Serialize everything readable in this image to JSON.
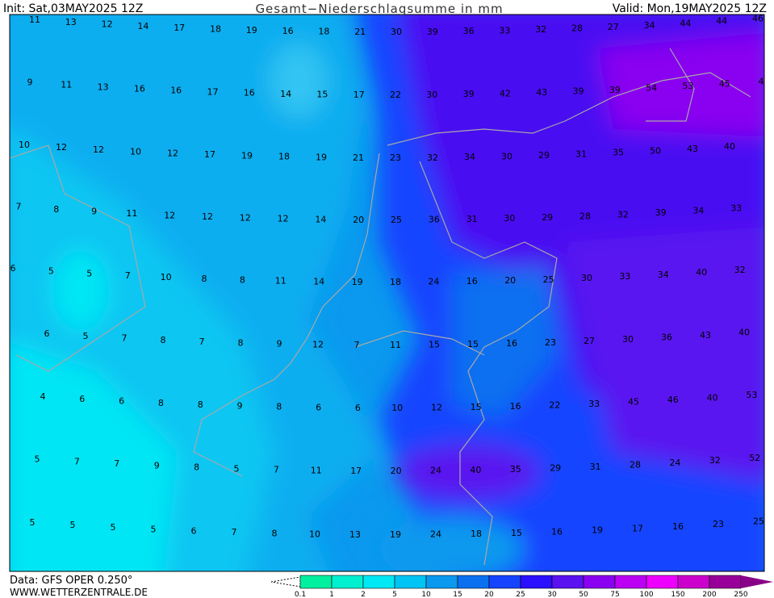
{
  "header": {
    "init": "Init: Sat,03MAY2025 12Z",
    "title": "Gesamt−Niederschlagsumme in mm",
    "valid": "Valid: Mon,19MAY2025 12Z"
  },
  "grid": {
    "rows": [
      [
        11,
        13,
        12,
        14,
        17,
        18,
        19,
        16,
        18,
        21,
        30,
        39,
        36,
        33,
        32,
        28,
        27,
        34,
        44,
        44,
        46
      ],
      [
        9,
        11,
        13,
        16,
        16,
        17,
        16,
        14,
        15,
        17,
        22,
        30,
        39,
        42,
        43,
        39,
        39,
        54,
        53,
        45,
        4
      ],
      [
        10,
        12,
        12,
        10,
        12,
        17,
        19,
        18,
        19,
        21,
        23,
        32,
        34,
        30,
        29,
        31,
        35,
        50,
        43,
        40
      ],
      [
        7,
        8,
        9,
        11,
        12,
        12,
        12,
        12,
        14,
        20,
        25,
        36,
        31,
        30,
        29,
        28,
        32,
        39,
        34,
        33
      ],
      [
        6,
        5,
        5,
        7,
        10,
        8,
        8,
        11,
        14,
        19,
        18,
        24,
        16,
        20,
        25,
        30,
        33,
        34,
        40,
        32
      ],
      [
        6,
        5,
        7,
        8,
        7,
        8,
        9,
        12,
        7,
        11,
        15,
        15,
        16,
        23,
        27,
        30,
        36,
        43,
        40
      ],
      [
        4,
        6,
        6,
        8,
        8,
        9,
        8,
        6,
        6,
        10,
        12,
        15,
        16,
        22,
        33,
        45,
        46,
        40,
        53
      ],
      [
        5,
        7,
        7,
        9,
        8,
        5,
        7,
        11,
        17,
        20,
        24,
        40,
        35,
        29,
        31,
        28,
        24,
        32,
        52
      ],
      [
        5,
        5,
        5,
        5,
        6,
        7,
        8,
        10,
        13,
        19,
        24,
        18,
        15,
        16,
        19,
        17,
        16,
        23,
        25
      ]
    ]
  },
  "footer": {
    "source": "Data: GFS OPER 0.250°",
    "website": "WWW.WETTERZENTRALE.DE"
  },
  "legend": {
    "ticks": [
      0.1,
      1,
      2,
      5,
      10,
      15,
      20,
      25,
      30,
      50,
      75,
      100,
      150,
      200,
      250
    ],
    "colors": [
      "#00f0a0",
      "#00f0d0",
      "#00e8f4",
      "#00c4f4",
      "#0a99ee",
      "#0a70f0",
      "#1544ff",
      "#2a10ff",
      "#5a12f0",
      "#8a00f0",
      "#bb00f4",
      "#ee00ff",
      "#cc00cc",
      "#990099",
      "#880088"
    ]
  }
}
